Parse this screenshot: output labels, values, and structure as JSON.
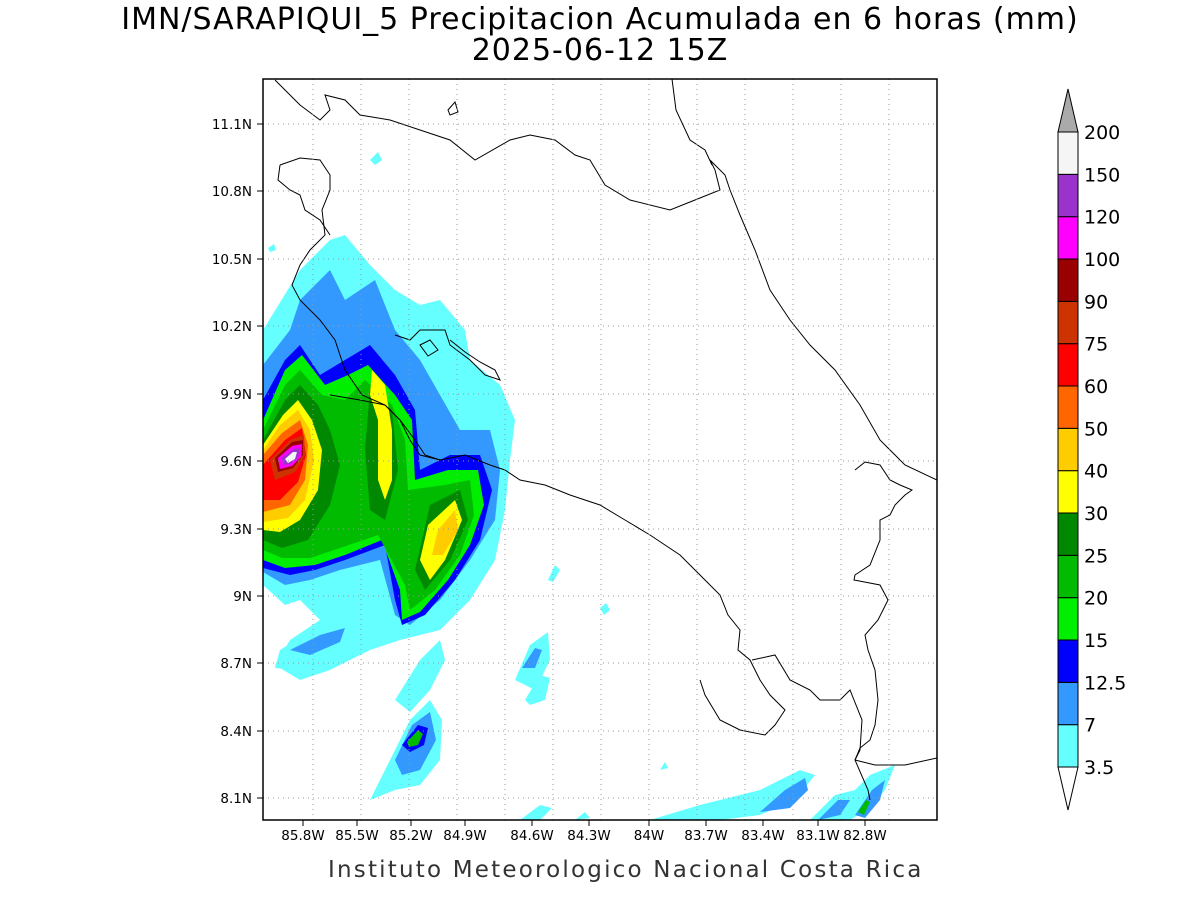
{
  "title": "IMN/SARAPIQUI_5 Precipitacion Acumulada en 6 horas (mm)",
  "subtitle": "2025-06-12 15Z",
  "footer": "Instituto Meteorologico Nacional Costa Rica",
  "map": {
    "lon_range": [
      -86.0,
      -83.7
    ],
    "lat_range": [
      8.0,
      11.2
    ],
    "lon_ticks": [
      "85.8W",
      "85.5W",
      "85.2W",
      "84.9W",
      "84.6W",
      "84.3W",
      "84W",
      "83.7W",
      "83.4W",
      "83.1W",
      "82.8W"
    ],
    "lat_ticks": [
      "11.1N",
      "10.8N",
      "10.5N",
      "10.2N",
      "9.9N",
      "9.6N",
      "9.3N",
      "9N",
      "8.7N",
      "8.4N",
      "8.1N"
    ],
    "grid": "dotted"
  },
  "colorbar": {
    "levels": [
      "3.5",
      "7",
      "12.5",
      "15",
      "20",
      "25",
      "30",
      "40",
      "50",
      "60",
      "75",
      "90",
      "100",
      "120",
      "150",
      "200"
    ],
    "colors": [
      "#66ffff",
      "#3399ff",
      "#0000ff",
      "#00ee00",
      "#00bb00",
      "#008800",
      "#ffff00",
      "#ffcc00",
      "#ff6600",
      "#ff0000",
      "#cc3300",
      "#990000",
      "#ff00ff",
      "#9933cc",
      "#f5f5f5",
      "#aaaaaa"
    ]
  },
  "icons": {
    "colorbar_top": "triangle-up",
    "colorbar_bottom": "triangle-down"
  }
}
